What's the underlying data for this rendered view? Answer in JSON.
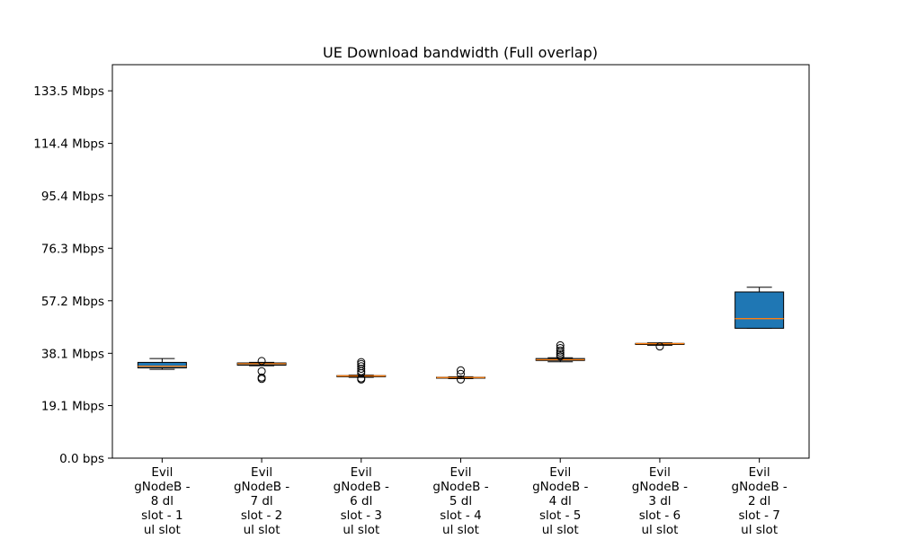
{
  "chart_data": {
    "type": "box",
    "title": "UE Download bandwidth (Full overlap)",
    "xlabel": "",
    "ylabel": "",
    "ylim": [
      0.0,
      143.0
    ],
    "y_ticks": [
      {
        "value": 0.0,
        "label": "0.0 bps"
      },
      {
        "value": 19.1,
        "label": "19.1 Mbps"
      },
      {
        "value": 38.1,
        "label": "38.1 Mbps"
      },
      {
        "value": 57.2,
        "label": "57.2 Mbps"
      },
      {
        "value": 76.3,
        "label": "76.3 Mbps"
      },
      {
        "value": 95.4,
        "label": "95.4 Mbps"
      },
      {
        "value": 114.4,
        "label": "114.4 Mbps"
      },
      {
        "value": 133.5,
        "label": "133.5 Mbps"
      }
    ],
    "y_unit": "Mbps",
    "grid": false,
    "box_color": "#1f77b4",
    "median_color": "#ff7f0e",
    "categories": [
      [
        "Evil",
        "gNodeB -",
        "8 dl",
        "slot - 1",
        "ul slot"
      ],
      [
        "Evil",
        "gNodeB -",
        "7 dl",
        "slot - 2",
        "ul slot"
      ],
      [
        "Evil",
        "gNodeB -",
        "6 dl",
        "slot - 3",
        "ul slot"
      ],
      [
        "Evil",
        "gNodeB -",
        "5 dl",
        "slot - 4",
        "ul slot"
      ],
      [
        "Evil",
        "gNodeB -",
        "4 dl",
        "slot - 5",
        "ul slot"
      ],
      [
        "Evil",
        "gNodeB -",
        "3 dl",
        "slot - 6",
        "ul slot"
      ],
      [
        "Evil",
        "gNodeB -",
        "2 dl",
        "slot - 7",
        "ul slot"
      ]
    ],
    "boxes": [
      {
        "whisker_low": 32.3,
        "q1": 32.8,
        "median": 33.4,
        "q3": 34.8,
        "whisker_high": 36.2,
        "outliers": []
      },
      {
        "whisker_low": 33.6,
        "q1": 33.8,
        "median": 34.3,
        "q3": 34.6,
        "whisker_high": 34.8,
        "outliers": [
          35.3,
          31.6,
          29.3,
          28.8
        ]
      },
      {
        "whisker_low": 29.4,
        "q1": 29.6,
        "median": 29.9,
        "q3": 30.0,
        "whisker_high": 30.2,
        "outliers": [
          34.9,
          34.2,
          33.4,
          32.5,
          31.6,
          30.9,
          29.0,
          28.6
        ]
      },
      {
        "whisker_low": 28.9,
        "q1": 29.1,
        "median": 29.3,
        "q3": 29.4,
        "whisker_high": 29.6,
        "outliers": [
          31.9,
          30.6,
          28.6
        ]
      },
      {
        "whisker_low": 35.0,
        "q1": 35.5,
        "median": 35.8,
        "q3": 36.2,
        "whisker_high": 36.5,
        "outliers": [
          41.0,
          40.0,
          39.1,
          38.4,
          37.7,
          37.0
        ]
      },
      {
        "whisker_low": 41.0,
        "q1": 41.3,
        "median": 41.6,
        "q3": 41.7,
        "whisker_high": 41.9,
        "outliers": [
          40.6
        ]
      },
      {
        "whisker_low": 47.2,
        "q1": 47.2,
        "median": 50.7,
        "q3": 60.4,
        "whisker_high": 62.1,
        "outliers": []
      }
    ]
  }
}
